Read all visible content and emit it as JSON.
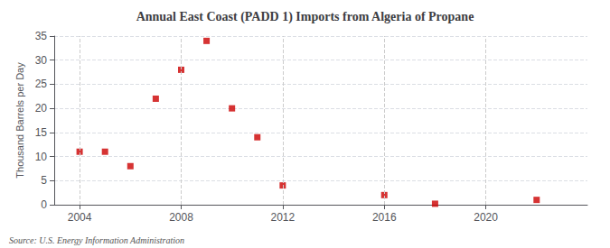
{
  "chart_data": {
    "type": "scatter",
    "title": "Annual East Coast (PADD 1) Imports from Algeria of Propane",
    "ylabel": "Thousand Barrels per Day",
    "annotations": [
      "Source: U.S. Energy Information Administration"
    ],
    "x": [
      2004,
      2005,
      2006,
      2007,
      2008,
      2009,
      2010,
      2011,
      2012,
      2016,
      2018,
      2022
    ],
    "values": [
      11,
      11,
      8,
      22,
      28,
      34,
      20,
      14,
      4,
      2,
      0.2,
      1
    ],
    "color": "#cc0000",
    "marker": "square",
    "xlim": [
      2003,
      2024
    ],
    "xticks": [
      2004,
      2008,
      2012,
      2016,
      2020
    ],
    "ylim": [
      0,
      35
    ],
    "yticks": [
      0,
      5,
      10,
      15,
      20,
      25,
      30,
      35
    ],
    "grid": true
  }
}
